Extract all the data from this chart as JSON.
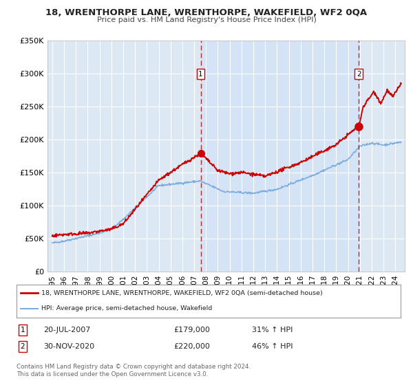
{
  "title": "18, WRENTHORPE LANE, WRENTHORPE, WAKEFIELD, WF2 0QA",
  "subtitle": "Price paid vs. HM Land Registry's House Price Index (HPI)",
  "background_color": "#ffffff",
  "plot_bg_color": "#dde8f5",
  "grid_color": "#ffffff",
  "ylim": [
    0,
    350000
  ],
  "yticks": [
    0,
    50000,
    100000,
    150000,
    200000,
    250000,
    300000,
    350000
  ],
  "ytick_labels": [
    "£0",
    "£50K",
    "£100K",
    "£150K",
    "£200K",
    "£250K",
    "£300K",
    "£350K"
  ],
  "red_line_color": "#cc0000",
  "blue_line_color": "#7aaddd",
  "marker_color": "#cc0000",
  "dashed_line_color": "#cc2222",
  "sale1_date": 2007.55,
  "sale1_price": 179000,
  "sale1_label": "1",
  "sale2_date": 2020.92,
  "sale2_price": 220000,
  "sale2_label": "2",
  "legend1_text": "18, WRENTHORPE LANE, WRENTHORPE, WAKEFIELD, WF2 0QA (semi-detached house)",
  "legend2_text": "HPI: Average price, semi-detached house, Wakefield",
  "table_row1": [
    "1",
    "20-JUL-2007",
    "£179,000",
    "31% ↑ HPI"
  ],
  "table_row2": [
    "2",
    "30-NOV-2020",
    "£220,000",
    "46% ↑ HPI"
  ],
  "footnote1": "Contains HM Land Registry data © Crown copyright and database right 2024.",
  "footnote2": "This data is licensed under the Open Government Licence v3.0.",
  "box_color": "#cc0000"
}
